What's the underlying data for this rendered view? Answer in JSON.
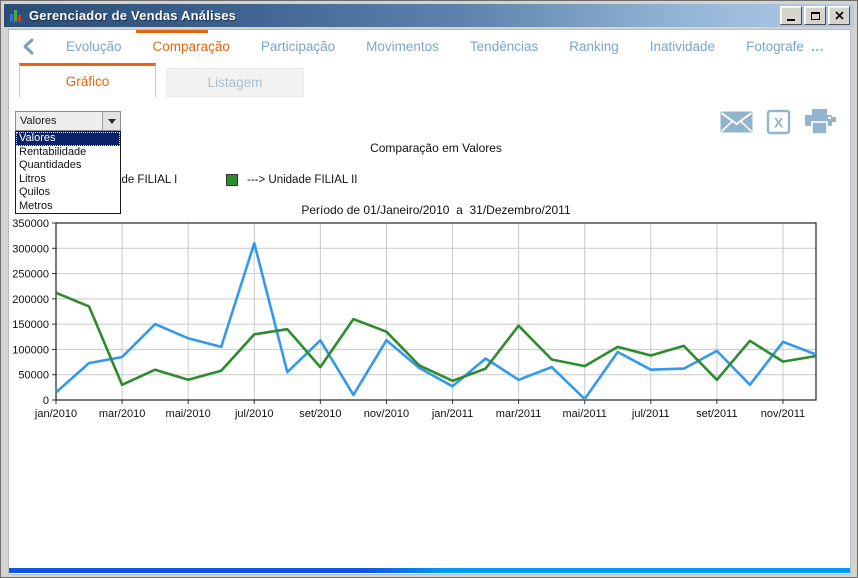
{
  "window": {
    "title": "Gerenciador de Vendas Análises",
    "controls": [
      "minimize",
      "maximize",
      "close"
    ]
  },
  "nav": {
    "items": [
      {
        "label": "Evolução",
        "active": false
      },
      {
        "label": "Comparação",
        "active": true
      },
      {
        "label": "Participação",
        "active": false
      },
      {
        "label": "Movimentos",
        "active": false
      },
      {
        "label": "Tendências",
        "active": false
      },
      {
        "label": "Ranking",
        "active": false
      },
      {
        "label": "Inatividade",
        "active": false
      },
      {
        "label": "Fotografe",
        "active": false
      }
    ],
    "overflow": "…"
  },
  "tabs": [
    {
      "label": "Gráfico",
      "active": true
    },
    {
      "label": "Listagem",
      "active": false
    }
  ],
  "toolbar": {
    "metric_select": {
      "value": "Valores",
      "options": [
        "Valores",
        "Rentabilidade",
        "Quantidades",
        "Litros",
        "Quilos",
        "Metros"
      ],
      "selected_index": 0
    },
    "icons": [
      "envelope",
      "excel-export",
      "printer"
    ]
  },
  "colors": {
    "accent_orange": "#e8650d",
    "selection_navy": "#0a246a",
    "nav_blue": "#7ba6c7",
    "icon_steel_blue": "#92b4cc",
    "bottom_bar_left": "#1253e0",
    "bottom_bar_right": "#019af2"
  },
  "chart_data": {
    "type": "line",
    "title": "Comparação em Valores",
    "subtitle": "Período de 01/Janeiro/2010  a  31/Dezembro/2011",
    "x": [
      "jan/2010",
      "fev/2010",
      "mar/2010",
      "abr/2010",
      "mai/2010",
      "jun/2010",
      "jul/2010",
      "ago/2010",
      "set/2010",
      "out/2010",
      "nov/2010",
      "dez/2010",
      "jan/2011",
      "fev/2011",
      "mar/2011",
      "abr/2011",
      "mai/2011",
      "jun/2011",
      "jul/2011",
      "ago/2011",
      "set/2011",
      "out/2011",
      "nov/2011",
      "dez/2011"
    ],
    "x_tick_labels": [
      "jan/2010",
      "mar/2010",
      "mai/2010",
      "jul/2010",
      "set/2010",
      "nov/2010",
      "jan/2011",
      "mar/2011",
      "mai/2011",
      "jul/2011",
      "set/2011",
      "nov/2011"
    ],
    "ylim": [
      0,
      350000
    ],
    "ytick_step": 50000,
    "ytick_labels": [
      "0",
      "50000",
      "100000",
      "150000",
      "200000",
      "250000",
      "300000",
      "350000"
    ],
    "grid": true,
    "legend_position": "top-left",
    "series": [
      {
        "name": "---> Unidade FILIAL I",
        "color": "#3399ee",
        "values": [
          15000,
          73000,
          85000,
          150000,
          122000,
          105000,
          310000,
          55000,
          118000,
          10000,
          118000,
          63000,
          27000,
          82000,
          40000,
          65000,
          2000,
          95000,
          60000,
          62000,
          97000,
          30000,
          115000,
          90000
        ]
      },
      {
        "name": "---> Unidade FILIAL II",
        "color": "#2e8b2e",
        "values": [
          212000,
          185000,
          30000,
          60000,
          40000,
          58000,
          130000,
          140000,
          65000,
          160000,
          135000,
          68000,
          38000,
          62000,
          147000,
          80000,
          67000,
          105000,
          88000,
          107000,
          40000,
          117000,
          76000,
          87000
        ]
      }
    ]
  }
}
